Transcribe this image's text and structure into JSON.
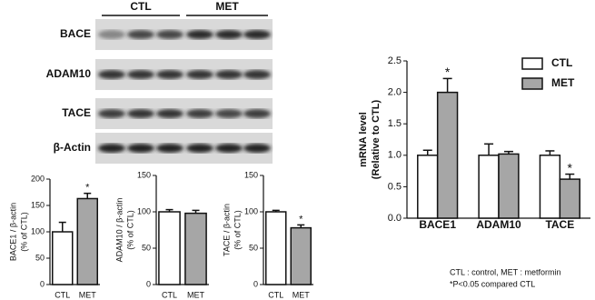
{
  "blot": {
    "groups": [
      "CTL",
      "MET"
    ],
    "rows": [
      "BACE",
      "ADAM10",
      "TACE",
      "β-Actin"
    ]
  },
  "chart_data": [
    {
      "type": "bar",
      "ylabel": [
        "BACE1 / β-actin",
        "(% of CTL)"
      ],
      "categories": [
        "CTL",
        "MET"
      ],
      "values": [
        100,
        163
      ],
      "errors": [
        18,
        10
      ],
      "colors": [
        "#ffffff",
        "#a6a6a6"
      ],
      "annotations": [
        {
          "text": "*",
          "category": 1
        }
      ],
      "ylim": [
        0,
        200
      ],
      "yticks": [
        0,
        50,
        100,
        150,
        200
      ]
    },
    {
      "type": "bar",
      "ylabel": [
        "ADAM10 / β-actin",
        "(% of CTL)"
      ],
      "categories": [
        "CTL",
        "MET"
      ],
      "values": [
        100,
        98
      ],
      "errors": [
        3,
        4
      ],
      "colors": [
        "#ffffff",
        "#a6a6a6"
      ],
      "ylim": [
        0,
        150
      ],
      "yticks": [
        0,
        50,
        100,
        150
      ]
    },
    {
      "type": "bar",
      "ylabel": [
        "TACE / β-actin",
        "(% of CTL)"
      ],
      "categories": [
        "CTL",
        "MET"
      ],
      "values": [
        100,
        78
      ],
      "errors": [
        2,
        4
      ],
      "colors": [
        "#ffffff",
        "#a6a6a6"
      ],
      "annotations": [
        {
          "text": "*",
          "category": 1
        }
      ],
      "ylim": [
        0,
        150
      ],
      "yticks": [
        0,
        50,
        100,
        150
      ]
    },
    {
      "type": "grouped-bar",
      "ylabel": [
        "mRNA level",
        "(Relative to CTL)"
      ],
      "categories": [
        "BACE1",
        "ADAM10",
        "TACE"
      ],
      "series": [
        {
          "name": "CTL",
          "color": "#ffffff",
          "values": [
            1.0,
            1.0,
            1.0
          ],
          "errors": [
            0.08,
            0.18,
            0.07
          ]
        },
        {
          "name": "MET",
          "color": "#a6a6a6",
          "values": [
            2.0,
            1.02,
            0.62
          ],
          "errors": [
            0.22,
            0.04,
            0.08
          ]
        }
      ],
      "annotations": [
        {
          "text": "*",
          "series": 1,
          "category": 0
        },
        {
          "text": "*",
          "series": 1,
          "category": 2
        }
      ],
      "ylim": [
        0,
        2.5
      ],
      "yticks": [
        {
          "value": 0,
          "label": "0.0"
        },
        0.5,
        {
          "value": 1,
          "label": "1.0"
        },
        1.5,
        {
          "value": 2,
          "label": "2.0"
        },
        2.5
      ],
      "legend": "upper right",
      "notes": [
        "CTL : control, MET : metformin",
        "*P<0.05 compared CTL"
      ]
    }
  ]
}
